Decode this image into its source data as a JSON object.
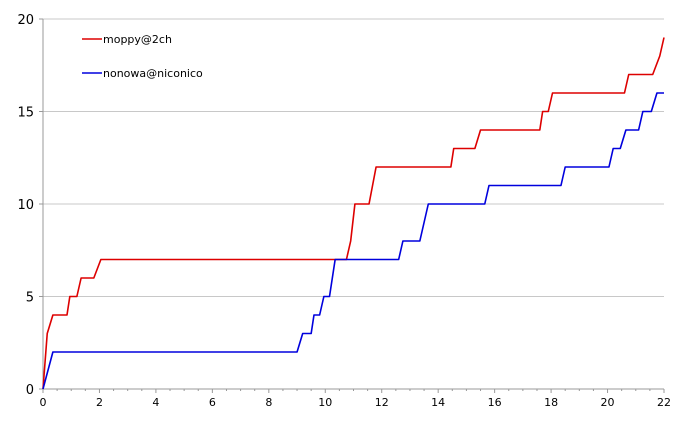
{
  "chart_data": {
    "type": "line",
    "xlim": [
      0,
      22
    ],
    "ylim": [
      0,
      20
    ],
    "x_ticks": [
      0,
      2,
      4,
      6,
      8,
      10,
      12,
      14,
      16,
      18,
      20,
      22
    ],
    "y_ticks": [
      0,
      5,
      10,
      15,
      20
    ],
    "x_tick_labels": [
      "0",
      "2",
      "4",
      "6",
      "8",
      "10",
      "12",
      "14",
      "16",
      "18",
      "20",
      "22"
    ],
    "y_tick_labels": [
      "0",
      "5",
      "10",
      "15",
      "20"
    ],
    "grid": "horizontal",
    "legend_position": "top-left",
    "series": [
      {
        "name": "moppy@2ch",
        "color": "#dd0000",
        "points": [
          [
            0,
            0
          ],
          [
            0.15,
            3
          ],
          [
            0.35,
            4
          ],
          [
            0.85,
            4
          ],
          [
            0.95,
            5
          ],
          [
            1.2,
            5
          ],
          [
            1.35,
            6
          ],
          [
            1.8,
            6
          ],
          [
            2.05,
            7
          ],
          [
            10.75,
            7
          ],
          [
            10.9,
            8
          ],
          [
            11.05,
            10
          ],
          [
            11.55,
            10
          ],
          [
            11.8,
            12
          ],
          [
            14.45,
            12
          ],
          [
            14.55,
            13
          ],
          [
            15.3,
            13
          ],
          [
            15.5,
            14
          ],
          [
            17.6,
            14
          ],
          [
            17.7,
            15
          ],
          [
            17.9,
            15
          ],
          [
            18.05,
            16
          ],
          [
            20.6,
            16
          ],
          [
            20.75,
            17
          ],
          [
            21.6,
            17
          ],
          [
            21.85,
            18
          ],
          [
            22,
            19
          ]
        ]
      },
      {
        "name": "nonowa@niconico",
        "color": "#0000dd",
        "points": [
          [
            0,
            0
          ],
          [
            0.35,
            2
          ],
          [
            9.0,
            2
          ],
          [
            9.2,
            3
          ],
          [
            9.5,
            3
          ],
          [
            9.6,
            4
          ],
          [
            9.8,
            4
          ],
          [
            9.95,
            5
          ],
          [
            10.15,
            5
          ],
          [
            10.35,
            7
          ],
          [
            12.6,
            7
          ],
          [
            12.75,
            8
          ],
          [
            13.35,
            8
          ],
          [
            13.65,
            10
          ],
          [
            15.65,
            10
          ],
          [
            15.8,
            11
          ],
          [
            18.35,
            11
          ],
          [
            18.5,
            12
          ],
          [
            20.05,
            12
          ],
          [
            20.2,
            13
          ],
          [
            20.45,
            13
          ],
          [
            20.65,
            14
          ],
          [
            21.1,
            14
          ],
          [
            21.25,
            15
          ],
          [
            21.55,
            15
          ],
          [
            21.75,
            16
          ],
          [
            22,
            16
          ]
        ]
      }
    ]
  }
}
